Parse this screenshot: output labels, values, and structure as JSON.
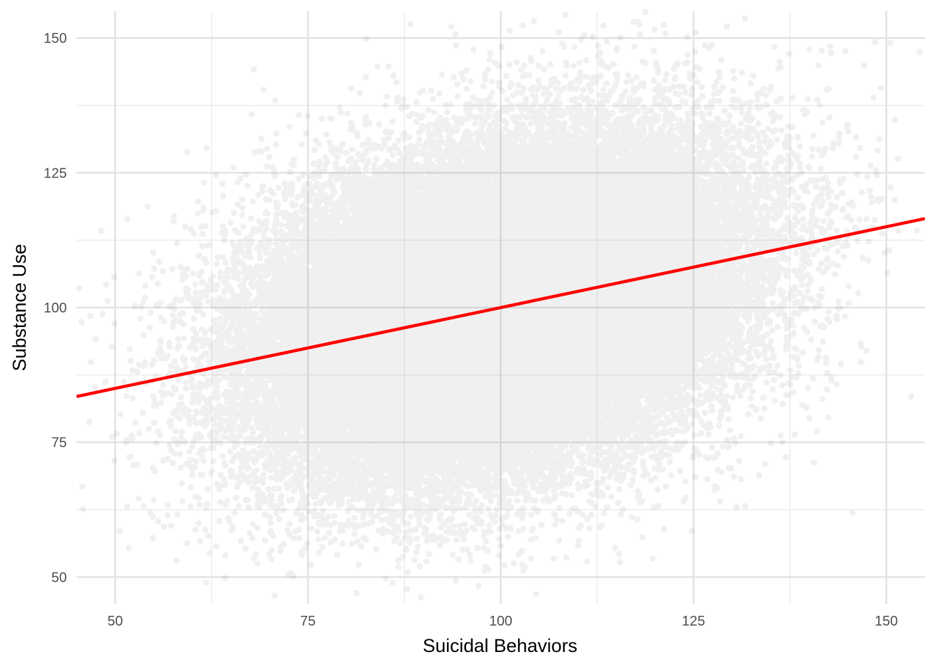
{
  "chart_data": {
    "type": "scatter",
    "title": "",
    "xlabel": "Suicidal Behaviors",
    "ylabel": "Substance Use",
    "xlim": [
      45,
      155
    ],
    "ylim": [
      45,
      155
    ],
    "x_ticks": [
      50,
      75,
      100,
      125,
      150
    ],
    "y_ticks": [
      50,
      75,
      100,
      125,
      150
    ],
    "grid": true,
    "legend": "none",
    "point_color": "#404040",
    "point_alpha": 0.08,
    "point_cloud": {
      "description_free": true,
      "count": 60000,
      "x_mean": 100,
      "x_sd": 15,
      "y_mean": 100,
      "y_sd": 15,
      "correlation": 0.3
    },
    "regression_line": {
      "color": "#ff0000",
      "points": [
        [
          45,
          83.5
        ],
        [
          155,
          116.5
        ]
      ]
    }
  }
}
